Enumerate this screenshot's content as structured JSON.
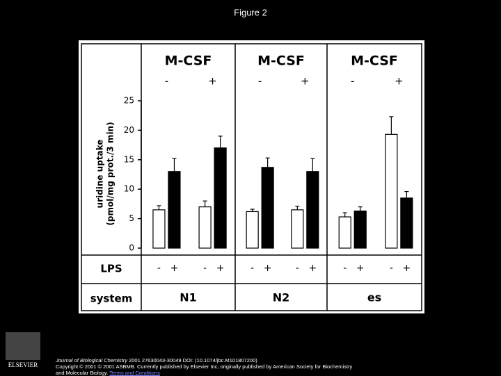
{
  "title": "Figure 2",
  "chart_data": {
    "type": "bar",
    "y_label": [
      "uridine uptake",
      "(pmol/mg prot./3 min)"
    ],
    "category_headers": [
      "M-CSF",
      "M-CSF",
      "M-CSF"
    ],
    "categories": [
      "-",
      "+",
      "-",
      "+",
      "-",
      "+"
    ],
    "series_header": "LPS",
    "series": [
      {
        "name": "-",
        "color": "#ffffff",
        "values": [
          6.5,
          7,
          6.2,
          6.5,
          5.3,
          19.3
        ],
        "errors": [
          0.7,
          1,
          0.4,
          0.6,
          0.7,
          3
        ]
      },
      {
        "name": "+",
        "color": "#000000",
        "values": [
          13,
          17,
          13.7,
          13,
          6.3,
          8.5
        ],
        "errors": [
          2.2,
          2,
          1.6,
          2.2,
          0.7,
          1.1
        ]
      }
    ],
    "group_header": "system",
    "groups": [
      "N1",
      "N2",
      "es"
    ],
    "ylim": [
      0,
      25
    ],
    "yticks": [
      0,
      5,
      10,
      15,
      20,
      25
    ]
  },
  "footer": {
    "journal": "Journal of Biological Chemistry",
    "citation": " 2001 27630043-30049 DOI: (10.1074/jbc.M101807200)",
    "copyright": "Copyright © 2001 © 2001 ASBMB. Currently published by Elsevier Inc; originally published by American Society for Biochemistry and Molecular Biology.",
    "link": "Terms and Conditions"
  },
  "logo": "ELSEVIER"
}
